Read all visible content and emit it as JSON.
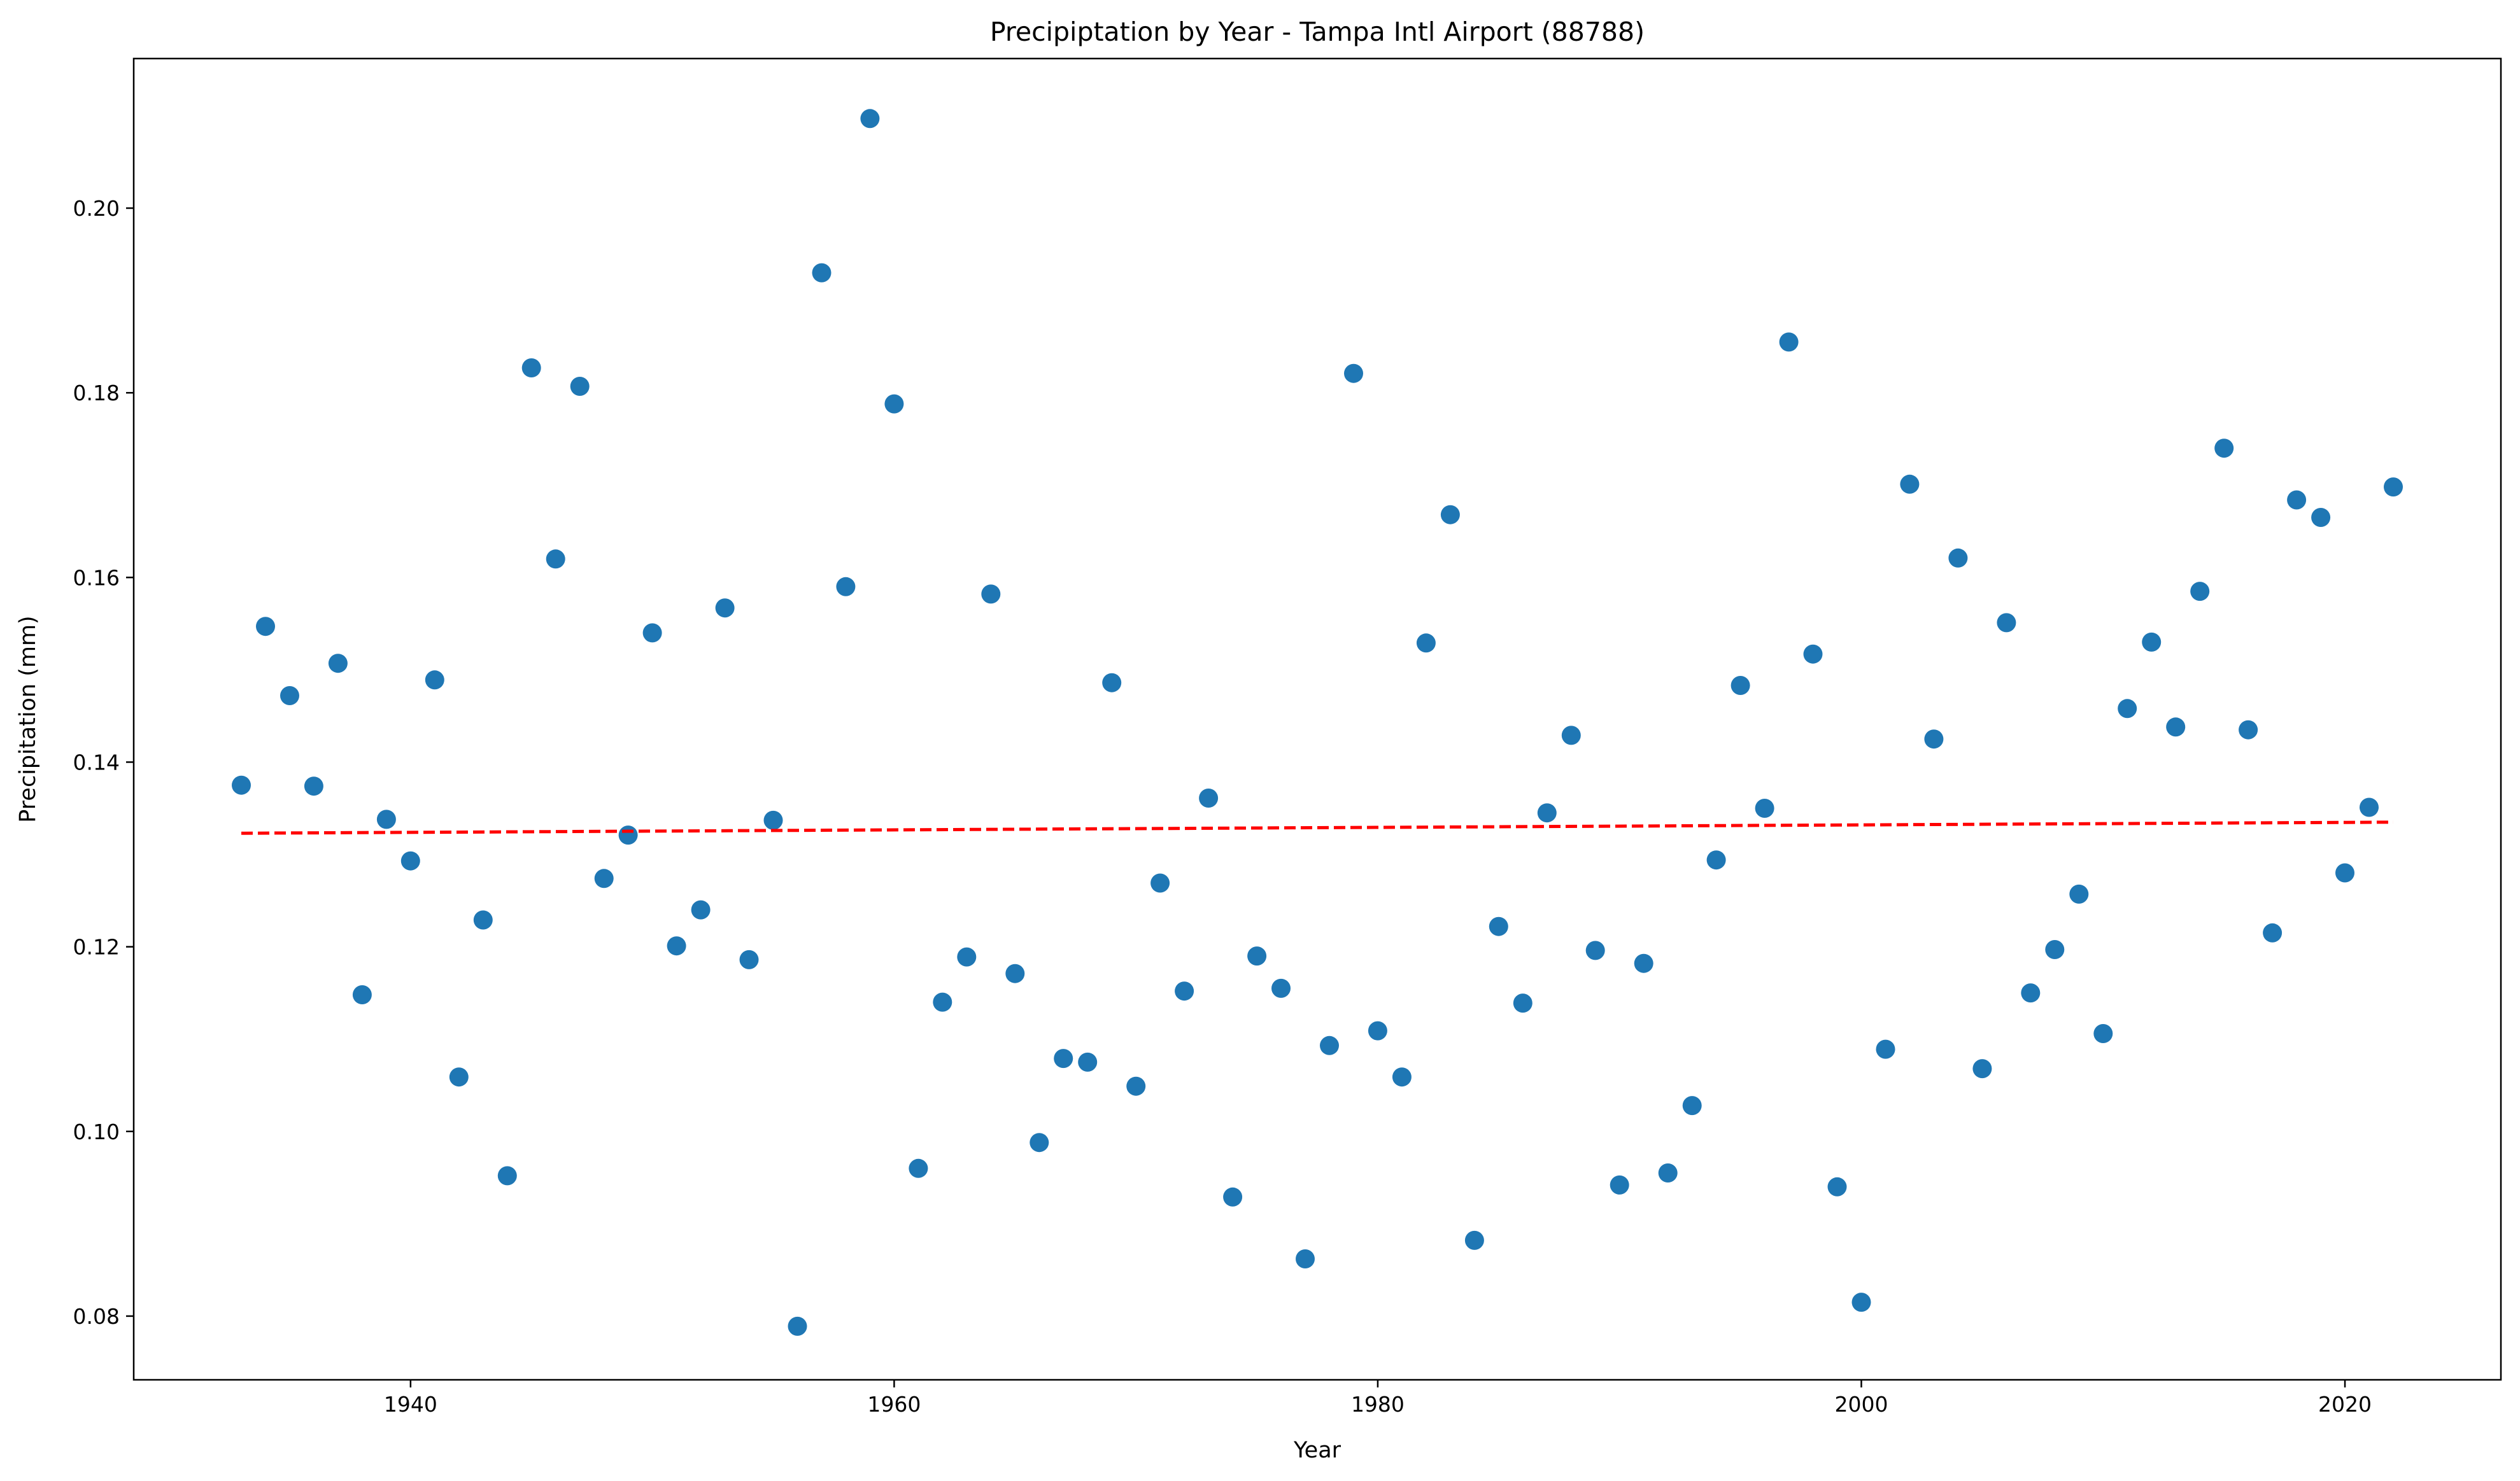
{
  "chart_data": {
    "type": "scatter",
    "title": "Precipiptation by Year - Tampa Intl Airport (88788)",
    "xlabel": "Year",
    "ylabel": "Precipitation (mm)",
    "xlim": [
      1928.55,
      2026.45
    ],
    "ylim": [
      0.0731,
      0.2162
    ],
    "xticks": [
      1940,
      1960,
      1980,
      2000,
      2020
    ],
    "xtick_labels": [
      "1940",
      "1960",
      "1980",
      "2000",
      "2020"
    ],
    "yticks": [
      0.08,
      0.1,
      0.12,
      0.14,
      0.16,
      0.18,
      0.2
    ],
    "ytick_labels": [
      "0.08",
      "0.10",
      "0.12",
      "0.14",
      "0.16",
      "0.18",
      "0.20"
    ],
    "grid": false,
    "legend": "none",
    "colors": {
      "points": "#1f77b4",
      "trend": "#ff0000"
    },
    "series": [
      {
        "x": [
          1933,
          1934,
          1935,
          1936,
          1937,
          1938,
          1939,
          1940,
          1941,
          1942,
          1943,
          1944,
          1945,
          1946,
          1947,
          1948,
          1949,
          1950,
          1951,
          1952,
          1953,
          1954,
          1955,
          1956,
          1957,
          1958,
          1959,
          1960,
          1961,
          1962,
          1963,
          1964,
          1965,
          1966,
          1967,
          1968,
          1969,
          1970,
          1971,
          1972,
          1973,
          1974,
          1975,
          1976,
          1977,
          1978,
          1979,
          1980,
          1981,
          1982,
          1983,
          1984,
          1985,
          1986,
          1987,
          1988,
          1989,
          1990,
          1991,
          1992,
          1993,
          1994,
          1995,
          1996,
          1997,
          1998,
          1999,
          2000,
          2001,
          2002,
          2003,
          2004,
          2005,
          2006,
          2007,
          2008,
          2009,
          2010,
          2011,
          2012,
          2013,
          2014,
          2015,
          2016,
          2017,
          2018,
          2019,
          2020,
          2021,
          2022
        ],
        "y": [
          0.1375,
          0.1547,
          0.1472,
          0.1374,
          0.1507,
          0.1148,
          0.1338,
          0.1293,
          0.1489,
          0.1059,
          0.1229,
          0.0952,
          0.1827,
          0.162,
          0.1807,
          0.1274,
          0.1321,
          0.154,
          0.1201,
          0.124,
          0.1567,
          0.1186,
          0.1337,
          0.0789,
          0.193,
          0.159,
          0.2097,
          0.1788,
          0.096,
          0.114,
          0.1189,
          0.1582,
          0.1171,
          0.0988,
          0.1079,
          0.1075,
          0.1486,
          0.1049,
          0.1269,
          0.1152,
          0.1361,
          0.0929,
          0.119,
          0.1155,
          0.0862,
          0.1093,
          0.1821,
          0.1109,
          0.1059,
          0.1529,
          0.1668,
          0.0882,
          0.1222,
          0.1139,
          0.1345,
          0.1429,
          0.1196,
          0.0942,
          0.1182,
          0.0955,
          0.1028,
          0.1294,
          0.1483,
          0.135,
          0.1855,
          0.1517,
          0.094,
          0.0815,
          0.1089,
          0.1701,
          0.1425,
          0.1621,
          0.1068,
          0.1551,
          0.115,
          0.1197,
          0.1257,
          0.1106,
          0.1458,
          0.153,
          0.1438,
          0.1585,
          0.174,
          0.1435,
          0.1215,
          0.1684,
          0.1665,
          0.128,
          0.1351,
          0.1698
        ]
      }
    ],
    "trendline": {
      "x": [
        1933,
        2022
      ],
      "y": [
        0.1323,
        0.1335
      ],
      "style": "dashed"
    }
  }
}
